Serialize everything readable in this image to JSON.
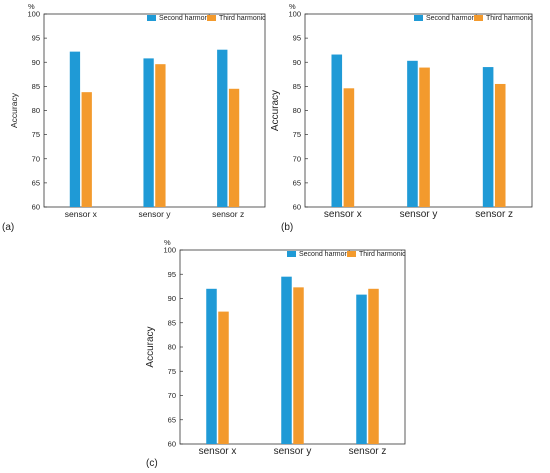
{
  "chart_data": [
    {
      "type": "bar",
      "panel_label": "(a)",
      "unit_label": "%",
      "ylabel": "Accuracy",
      "ylim": [
        60,
        100
      ],
      "yticks": [
        60,
        65,
        70,
        75,
        80,
        85,
        90,
        95,
        100
      ],
      "categories": [
        "sensor x",
        "sensor y",
        "sensor z"
      ],
      "legend_position": "top-right",
      "series": [
        {
          "name": "Second harmonic",
          "color": "#1f9ad6",
          "values": [
            92.2,
            90.8,
            92.6
          ]
        },
        {
          "name": "Third harmonic",
          "color": "#f39a2d",
          "values": [
            83.8,
            89.6,
            84.5
          ]
        }
      ]
    },
    {
      "type": "bar",
      "panel_label": "(b)",
      "unit_label": "%",
      "ylabel": "Accuracy",
      "ylim": [
        60,
        100
      ],
      "yticks": [
        60,
        65,
        70,
        75,
        80,
        85,
        90,
        95,
        100
      ],
      "categories": [
        "sensor x",
        "sensor y",
        "sensor z"
      ],
      "legend_position": "top-right",
      "series": [
        {
          "name": "Second harmonic",
          "color": "#1f9ad6",
          "values": [
            91.6,
            90.3,
            89.0
          ]
        },
        {
          "name": "Third harmonic",
          "color": "#f39a2d",
          "values": [
            84.6,
            88.9,
            85.5
          ]
        }
      ]
    },
    {
      "type": "bar",
      "panel_label": "(c)",
      "unit_label": "%",
      "ylabel": "Accuracy",
      "ylim": [
        60,
        100
      ],
      "yticks": [
        60,
        65,
        70,
        75,
        80,
        85,
        90,
        95,
        100
      ],
      "categories": [
        "sensor x",
        "sensor y",
        "sensor z"
      ],
      "legend_position": "top-right",
      "series": [
        {
          "name": "Second harmonic",
          "color": "#1f9ad6",
          "values": [
            92.0,
            94.5,
            90.8
          ]
        },
        {
          "name": "Third harmonic",
          "color": "#f39a2d",
          "values": [
            87.3,
            92.3,
            92.0
          ]
        }
      ]
    }
  ]
}
